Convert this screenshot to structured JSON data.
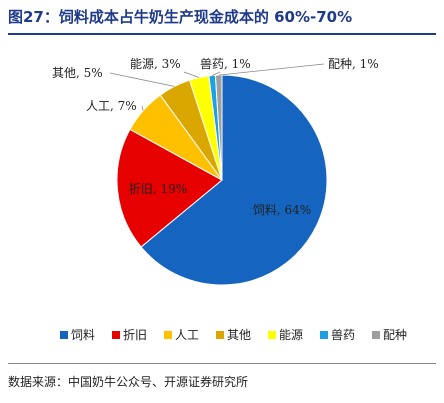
{
  "header": {
    "title": "图27：饲料成本占牛奶生产现金成本的 60%-70%"
  },
  "footer": {
    "source": "数据来源：中国奶牛公众号、开源证券研究所"
  },
  "chart_data": {
    "type": "pie",
    "title": "",
    "legend_position": "bottom",
    "slices": [
      {
        "name": "饲料",
        "value": 64,
        "label": "饲料, 64%",
        "color": "#1565c0"
      },
      {
        "name": "折旧",
        "value": 19,
        "label": "折旧, 19%",
        "color": "#e60000"
      },
      {
        "name": "人工",
        "value": 7,
        "label": "人工, 7%",
        "color": "#ffc000"
      },
      {
        "name": "其他",
        "value": 5,
        "label": "其他, 5%",
        "color": "#daa600"
      },
      {
        "name": "能源",
        "value": 3,
        "label": "能源, 3%",
        "color": "#ffff00"
      },
      {
        "name": "兽药",
        "value": 1,
        "label": "兽药, 1%",
        "color": "#1ba1e2"
      },
      {
        "name": "配种",
        "value": 1,
        "label": "配种, 1%",
        "color": "#9e9e9e"
      }
    ]
  }
}
